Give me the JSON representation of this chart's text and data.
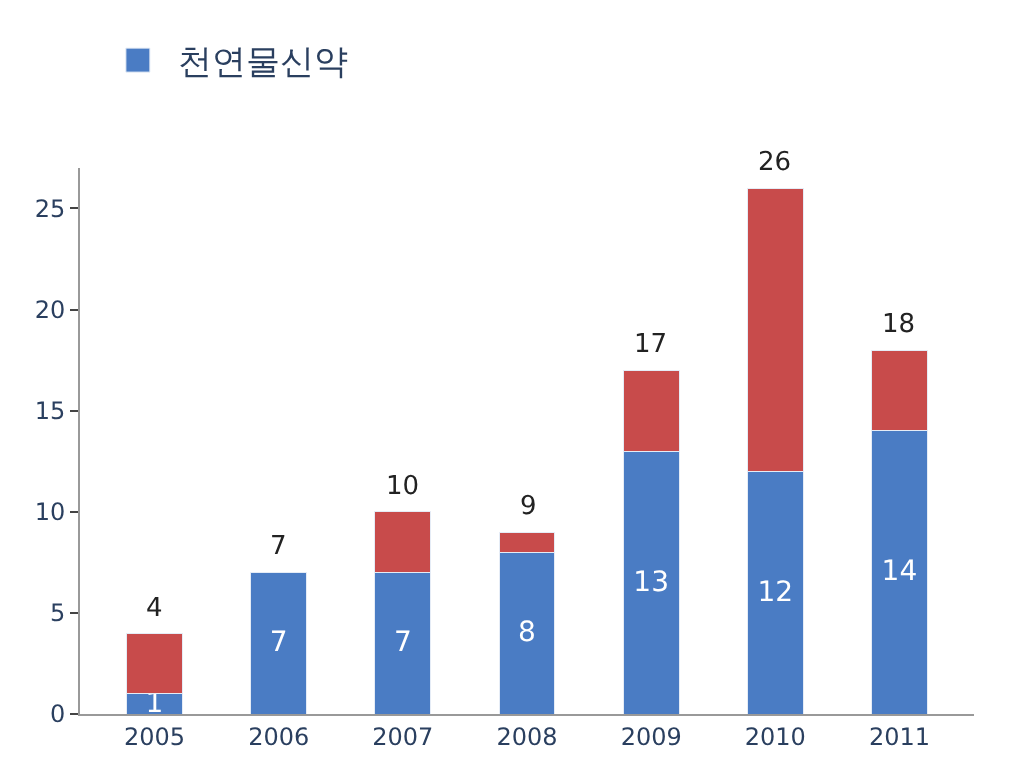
{
  "chart_data": {
    "type": "bar",
    "stacked": true,
    "categories": [
      "2005",
      "2006",
      "2007",
      "2008",
      "2009",
      "2010",
      "2011"
    ],
    "series": [
      {
        "name": "천연물신약",
        "color": "#4a7cc4",
        "values": [
          1,
          7,
          7,
          8,
          13,
          12,
          14
        ],
        "value_labels": [
          "1",
          "7",
          "7",
          "8",
          "13",
          "12",
          "14"
        ]
      },
      {
        "color": "#c84b4b",
        "values": [
          3,
          null,
          3,
          1,
          4,
          14,
          4
        ]
      }
    ],
    "totals": [
      "4",
      "7",
      "10",
      "9",
      "17",
      "26",
      "18"
    ],
    "ylim": [
      0,
      27
    ],
    "yticks": [
      0,
      5,
      10,
      15,
      20,
      25
    ],
    "grid": false,
    "legend": "top left"
  }
}
